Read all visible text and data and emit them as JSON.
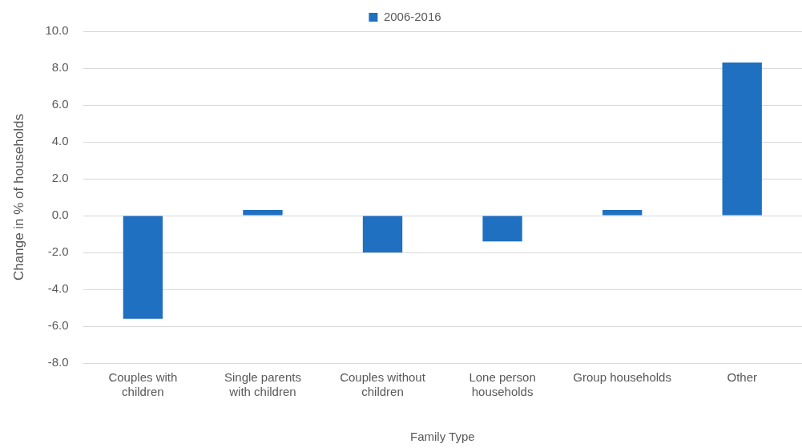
{
  "chart_data": {
    "type": "bar",
    "xlabel": "Family Type",
    "ylabel": "Change in % of households",
    "categories": [
      "Couples with children",
      "Single parents with children",
      "Couples without children",
      "Lone person households",
      "Group households",
      "Other"
    ],
    "series": [
      {
        "name": "2006-2016",
        "color": "#1f70c1",
        "values": [
          -5.6,
          0.3,
          -2.0,
          -1.4,
          0.3,
          8.3
        ]
      }
    ],
    "ylim": [
      -8,
      10
    ],
    "yticks": [
      {
        "value": -8,
        "label": "-8.0"
      },
      {
        "value": -6,
        "label": "-6.0"
      },
      {
        "value": -4,
        "label": "-4.0"
      },
      {
        "value": -2,
        "label": "-2.0"
      },
      {
        "value": 0,
        "label": "0.0"
      },
      {
        "value": 2,
        "label": "2.0"
      },
      {
        "value": 4,
        "label": "4.0"
      },
      {
        "value": 6,
        "label": "6.0"
      },
      {
        "value": 8,
        "label": "8.0"
      },
      {
        "value": 10,
        "label": "10.0"
      }
    ],
    "grid": "y",
    "legend": "top"
  }
}
